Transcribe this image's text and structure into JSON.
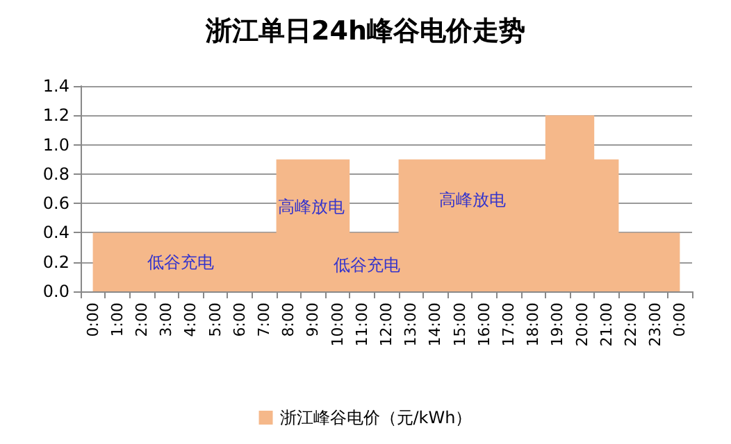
{
  "chart_data": {
    "type": "area",
    "title": "浙江单日24h峰谷电价走势",
    "categories": [
      "0:00",
      "1:00",
      "2:00",
      "3:00",
      "4:00",
      "5:00",
      "6:00",
      "7:00",
      "8:00",
      "9:00",
      "10:00",
      "11:00",
      "12:00",
      "13:00",
      "14:00",
      "15:00",
      "16:00",
      "17:00",
      "18:00",
      "19:00",
      "20:00",
      "21:00",
      "22:00",
      "23:00",
      "0:00"
    ],
    "series": [
      {
        "name": "浙江峰谷电价（元/kWh）",
        "color": "#f5b88a",
        "values": [
          0.4,
          0.4,
          0.4,
          0.4,
          0.4,
          0.4,
          0.4,
          0.4,
          0.9,
          0.9,
          0.9,
          0.4,
          0.4,
          0.9,
          0.9,
          0.9,
          0.9,
          0.9,
          0.9,
          1.2,
          1.2,
          0.9,
          0.4,
          0.4,
          0.4
        ]
      }
    ],
    "ylim": [
      0,
      1.4
    ],
    "yticks": [
      {
        "value": 0,
        "label": "0.0"
      },
      0.2,
      0.4,
      0.6,
      0.8,
      {
        "value": 1,
        "label": "1.0"
      },
      1.2,
      1.4
    ],
    "grid": "y",
    "legend": "bottom",
    "annotations": [
      "低谷充电",
      "高峰放电",
      "低谷充电",
      "高峰放电"
    ]
  }
}
